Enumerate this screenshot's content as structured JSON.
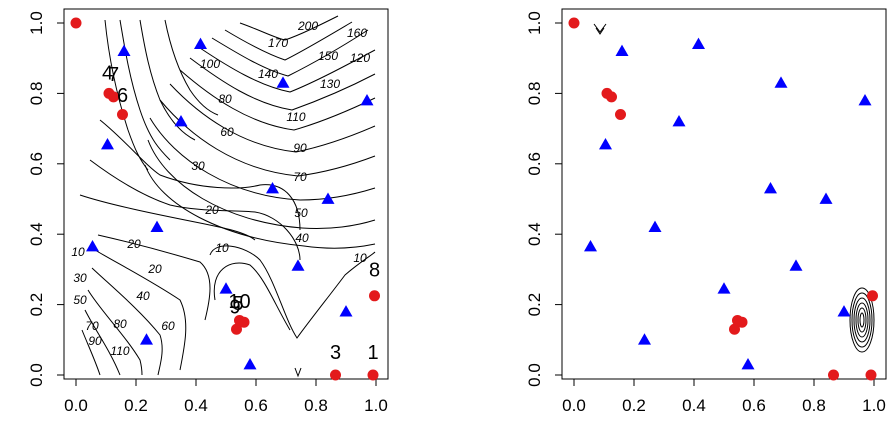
{
  "colors": {
    "design_points": "#e31a1c",
    "candidate_points": "#0000ff",
    "contours": "#000000"
  },
  "chart_data": [
    {
      "type": "scatter",
      "panel": "left",
      "xlabel": "",
      "ylabel": "",
      "xlim": [
        0,
        1
      ],
      "ylim": [
        0,
        1
      ],
      "x_ticks": [
        "0.0",
        "0.2",
        "0.4",
        "0.6",
        "0.8",
        "1.0"
      ],
      "y_ticks": [
        "0.0",
        "0.2",
        "0.4",
        "0.6",
        "0.8",
        "1.0"
      ],
      "grid": false,
      "contour_levels": [
        "200",
        "170",
        "150",
        "160",
        "140",
        "120",
        "130",
        "100",
        "110",
        "80",
        "90",
        "60",
        "70",
        "50",
        "40",
        "30",
        "20",
        "20",
        "10",
        "10",
        "10",
        "20",
        "30",
        "40",
        "50",
        "60",
        "70",
        "80",
        "90",
        "110"
      ],
      "series": [
        {
          "marker": "circle",
          "color": "#e31a1c",
          "points": [
            [
              0.0,
              1.0
            ],
            [
              0.11,
              0.8
            ],
            [
              0.125,
              0.79
            ],
            [
              0.155,
              0.74
            ],
            [
              0.535,
              0.13
            ],
            [
              0.545,
              0.155
            ],
            [
              0.56,
              0.15
            ],
            [
              0.865,
              0.0
            ],
            [
              0.99,
              0.0
            ],
            [
              0.995,
              0.225
            ]
          ]
        },
        {
          "marker": "triangle",
          "color": "#0000ff",
          "points": [
            [
              0.16,
              0.92
            ],
            [
              0.415,
              0.94
            ],
            [
              0.69,
              0.83
            ],
            [
              0.97,
              0.78
            ],
            [
              0.35,
              0.72
            ],
            [
              0.105,
              0.655
            ],
            [
              0.655,
              0.53
            ],
            [
              0.84,
              0.5
            ],
            [
              0.27,
              0.42
            ],
            [
              0.055,
              0.365
            ],
            [
              0.74,
              0.31
            ],
            [
              0.5,
              0.245
            ],
            [
              0.9,
              0.18
            ],
            [
              0.235,
              0.1
            ],
            [
              0.58,
              0.03
            ]
          ]
        }
      ],
      "point_labels": [
        {
          "text": "4",
          "x": 0.105,
          "y": 0.84
        },
        {
          "text": "7",
          "x": 0.125,
          "y": 0.835
        },
        {
          "text": "6",
          "x": 0.155,
          "y": 0.775
        },
        {
          "text": "10",
          "x": 0.545,
          "y": 0.19
        },
        {
          "text": "9",
          "x": 0.53,
          "y": 0.175
        },
        {
          "text": "5",
          "x": 0.54,
          "y": 0.185
        },
        {
          "text": "8",
          "x": 0.995,
          "y": 0.28
        },
        {
          "text": "3",
          "x": 0.865,
          "y": 0.045
        },
        {
          "text": "1",
          "x": 0.99,
          "y": 0.045
        }
      ]
    },
    {
      "type": "scatter",
      "panel": "right",
      "xlabel": "",
      "ylabel": "",
      "xlim": [
        0,
        1
      ],
      "ylim": [
        0,
        1
      ],
      "x_ticks": [
        "0.0",
        "0.2",
        "0.4",
        "0.6",
        "0.8",
        "1.0"
      ],
      "y_ticks": [
        "0.0",
        "0.2",
        "0.4",
        "0.6",
        "0.8",
        "1.0"
      ],
      "grid": false,
      "series": [
        {
          "marker": "circle",
          "color": "#e31a1c",
          "points": [
            [
              0.0,
              1.0
            ],
            [
              0.11,
              0.8
            ],
            [
              0.125,
              0.79
            ],
            [
              0.155,
              0.74
            ],
            [
              0.535,
              0.13
            ],
            [
              0.545,
              0.155
            ],
            [
              0.56,
              0.15
            ],
            [
              0.865,
              0.0
            ],
            [
              0.99,
              0.0
            ],
            [
              0.995,
              0.225
            ]
          ]
        },
        {
          "marker": "triangle",
          "color": "#0000ff",
          "points": [
            [
              0.16,
              0.92
            ],
            [
              0.415,
              0.94
            ],
            [
              0.69,
              0.83
            ],
            [
              0.97,
              0.78
            ],
            [
              0.35,
              0.72
            ],
            [
              0.105,
              0.655
            ],
            [
              0.655,
              0.53
            ],
            [
              0.84,
              0.5
            ],
            [
              0.27,
              0.42
            ],
            [
              0.055,
              0.365
            ],
            [
              0.74,
              0.31
            ],
            [
              0.5,
              0.245
            ],
            [
              0.9,
              0.18
            ],
            [
              0.235,
              0.1
            ],
            [
              0.58,
              0.03
            ]
          ]
        }
      ]
    }
  ]
}
